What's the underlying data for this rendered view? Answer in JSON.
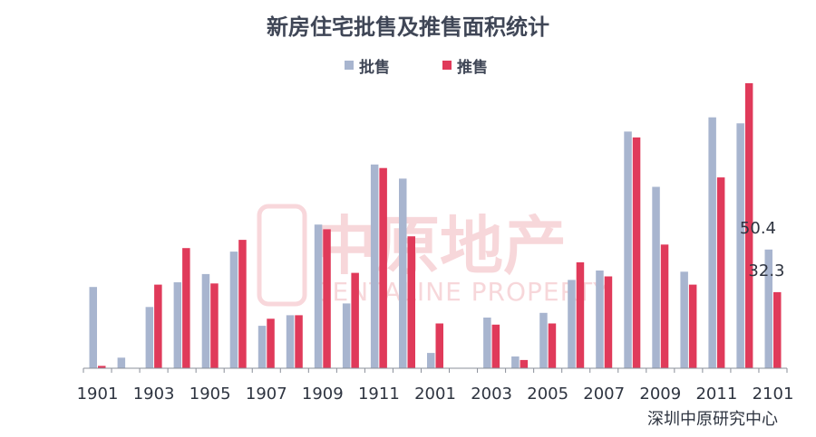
{
  "chart_data": {
    "type": "bar",
    "title": "新房住宅批售及推售面积统计",
    "categories": [
      "1901",
      "1902",
      "1903",
      "1904",
      "1905",
      "1906",
      "1907",
      "1908",
      "1909",
      "1910",
      "1911",
      "1912",
      "2001",
      "2002",
      "2003",
      "2004",
      "2005",
      "2006",
      "2007",
      "2008",
      "2009",
      "2010",
      "2011",
      "2012",
      "2101"
    ],
    "tick_labels": [
      "1901",
      "1903",
      "1905",
      "1907",
      "1909",
      "1911",
      "2001",
      "2003",
      "2005",
      "2007",
      "2009",
      "2011",
      "2101"
    ],
    "series": [
      {
        "name": "批售",
        "color": "#a8b5cf",
        "values": [
          34.5,
          4.5,
          26,
          36.5,
          40,
          49.5,
          18,
          22.5,
          61,
          27.5,
          86.5,
          80.5,
          6.5,
          0,
          21.5,
          5,
          23.5,
          37.5,
          41.5,
          100.5,
          77,
          41,
          106.5,
          104,
          50.4
        ]
      },
      {
        "name": "推售",
        "color": "#e03a5a",
        "values": [
          1,
          0,
          35.5,
          51,
          36,
          54.5,
          21,
          22.5,
          59,
          40.5,
          85,
          56,
          19,
          0,
          18.5,
          3.5,
          19,
          45,
          39,
          98,
          52.5,
          35.5,
          81,
          121,
          32.3
        ]
      }
    ],
    "data_labels": [
      {
        "series": "批售",
        "category": "2101",
        "text": "50.4"
      },
      {
        "series": "推售",
        "category": "2101",
        "text": "32.3"
      }
    ],
    "ylim": [
      0,
      121
    ],
    "grid": false,
    "legend_position": "top-center"
  },
  "watermark": {
    "brand": "中原地产",
    "brand_en": "CENTALINE PROPERTY",
    "seal": "中原"
  },
  "source_note": "深圳中原研究中心"
}
